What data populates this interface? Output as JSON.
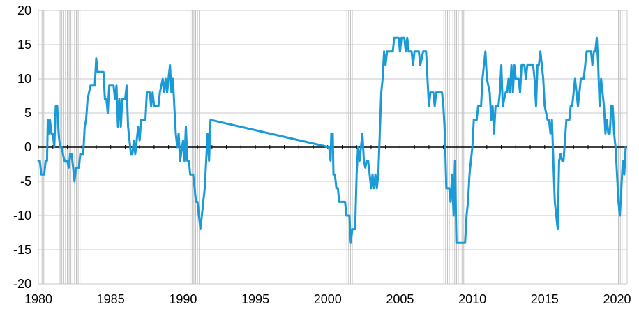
{
  "chart_data": {
    "type": "line",
    "title": "",
    "xlabel": "",
    "ylabel": "",
    "xlim": [
      1980,
      2020.7
    ],
    "ylim": [
      -20,
      20
    ],
    "x_ticks": [
      1980,
      1985,
      1990,
      1995,
      2000,
      2005,
      2010,
      2015,
      2020
    ],
    "y_ticks": [
      20,
      15,
      10,
      5,
      0,
      -5,
      -10,
      -15,
      -20
    ],
    "x_tick_labels": [
      "1980",
      "1985",
      "1990",
      "1995",
      "2000",
      "2005",
      "2010",
      "2015",
      "2020"
    ],
    "y_tick_labels": [
      "20",
      "15",
      "10",
      "5",
      "0",
      "-5",
      "-10",
      "-15",
      "-20"
    ],
    "grid": true,
    "legend": "none",
    "colors": {
      "line": "#1a9ad6",
      "recession": "#b3b3b3",
      "grid": "#c8c8c8",
      "zero_line": "#000000"
    },
    "recession_periods": [
      [
        1980.0,
        1980.5
      ],
      [
        1981.5,
        1982.9
      ],
      [
        1990.5,
        1991.2
      ],
      [
        2001.2,
        2001.9
      ],
      [
        2007.9,
        2009.5
      ],
      [
        2020.1,
        2020.4
      ]
    ],
    "series": [
      {
        "values": [
          [
            1980.0,
            -2
          ],
          [
            1980.1,
            -2
          ],
          [
            1980.2,
            -4
          ],
          [
            1980.4,
            -4
          ],
          [
            1980.5,
            -2
          ],
          [
            1980.6,
            -2
          ],
          [
            1980.65,
            4
          ],
          [
            1980.75,
            2
          ],
          [
            1980.8,
            4
          ],
          [
            1980.9,
            2
          ],
          [
            1981.0,
            2
          ],
          [
            1981.1,
            0
          ],
          [
            1981.2,
            6
          ],
          [
            1981.3,
            6
          ],
          [
            1981.4,
            2
          ],
          [
            1981.5,
            0
          ],
          [
            1981.6,
            0
          ],
          [
            1981.8,
            -2
          ],
          [
            1982.0,
            -2
          ],
          [
            1982.1,
            -3
          ],
          [
            1982.2,
            -1
          ],
          [
            1982.3,
            -1
          ],
          [
            1982.4,
            -3
          ],
          [
            1982.5,
            -5
          ],
          [
            1982.6,
            -3
          ],
          [
            1982.8,
            -3
          ],
          [
            1982.9,
            -1
          ],
          [
            1983.1,
            -1
          ],
          [
            1983.2,
            3
          ],
          [
            1983.3,
            4
          ],
          [
            1983.4,
            7
          ],
          [
            1983.6,
            9
          ],
          [
            1983.9,
            9
          ],
          [
            1984.0,
            13
          ],
          [
            1984.1,
            11
          ],
          [
            1984.5,
            11
          ],
          [
            1984.6,
            7
          ],
          [
            1984.7,
            7
          ],
          [
            1984.8,
            5
          ],
          [
            1984.9,
            9
          ],
          [
            1985.2,
            9
          ],
          [
            1985.3,
            7
          ],
          [
            1985.4,
            9
          ],
          [
            1985.5,
            3
          ],
          [
            1985.6,
            7
          ],
          [
            1985.7,
            3
          ],
          [
            1985.8,
            7
          ],
          [
            1986.0,
            7
          ],
          [
            1986.1,
            9
          ],
          [
            1986.2,
            3
          ],
          [
            1986.4,
            -1
          ],
          [
            1986.5,
            -1
          ],
          [
            1986.6,
            1
          ],
          [
            1986.7,
            -1
          ],
          [
            1986.8,
            1
          ],
          [
            1986.9,
            3
          ],
          [
            1987.0,
            1
          ],
          [
            1987.1,
            4
          ],
          [
            1987.4,
            4
          ],
          [
            1987.5,
            8
          ],
          [
            1987.7,
            8
          ],
          [
            1987.8,
            6
          ],
          [
            1987.9,
            8
          ],
          [
            1988.0,
            6
          ],
          [
            1988.3,
            6
          ],
          [
            1988.4,
            8
          ],
          [
            1988.6,
            10
          ],
          [
            1988.7,
            8
          ],
          [
            1988.8,
            10
          ],
          [
            1988.9,
            8
          ],
          [
            1989.0,
            10
          ],
          [
            1989.1,
            12
          ],
          [
            1989.2,
            8
          ],
          [
            1989.3,
            10
          ],
          [
            1989.4,
            6
          ],
          [
            1989.5,
            2
          ],
          [
            1989.6,
            0
          ],
          [
            1989.7,
            2
          ],
          [
            1989.8,
            -2
          ],
          [
            1990.0,
            1
          ],
          [
            1990.1,
            -2
          ],
          [
            1990.2,
            3
          ],
          [
            1990.3,
            -2
          ],
          [
            1990.4,
            -2
          ],
          [
            1990.5,
            -4
          ],
          [
            1990.7,
            -4
          ],
          [
            1990.8,
            -6
          ],
          [
            1990.9,
            -8
          ],
          [
            1991.0,
            -8
          ],
          [
            1991.1,
            -10
          ],
          [
            1991.2,
            -12
          ],
          [
            1991.4,
            -8
          ],
          [
            1991.5,
            -6
          ],
          [
            1991.7,
            2
          ],
          [
            1991.8,
            -2
          ],
          [
            1991.9,
            4
          ],
          [
            2000.1,
            0
          ],
          [
            2000.2,
            -2
          ],
          [
            2000.25,
            2
          ],
          [
            2000.35,
            2
          ],
          [
            2000.4,
            -4
          ],
          [
            2000.5,
            -4
          ],
          [
            2000.6,
            -6
          ],
          [
            2000.7,
            -6
          ],
          [
            2000.8,
            -8
          ],
          [
            2000.9,
            -8
          ],
          [
            2001.0,
            -8
          ],
          [
            2001.2,
            -8
          ],
          [
            2001.3,
            -10
          ],
          [
            2001.5,
            -10
          ],
          [
            2001.6,
            -14
          ],
          [
            2001.7,
            -12
          ],
          [
            2001.9,
            -12
          ],
          [
            2002.0,
            -4
          ],
          [
            2002.1,
            0
          ],
          [
            2002.2,
            -2
          ],
          [
            2002.3,
            0
          ],
          [
            2002.4,
            2
          ],
          [
            2002.5,
            -2
          ],
          [
            2002.6,
            -3
          ],
          [
            2002.7,
            -2
          ],
          [
            2002.8,
            -2
          ],
          [
            2002.9,
            -4
          ],
          [
            2003.0,
            -6
          ],
          [
            2003.1,
            -4
          ],
          [
            2003.2,
            -6
          ],
          [
            2003.3,
            -4
          ],
          [
            2003.4,
            -6
          ],
          [
            2003.5,
            -4
          ],
          [
            2003.6,
            2
          ],
          [
            2003.7,
            8
          ],
          [
            2003.8,
            10
          ],
          [
            2003.9,
            14
          ],
          [
            2004.0,
            12
          ],
          [
            2004.1,
            14
          ],
          [
            2004.5,
            14
          ],
          [
            2004.6,
            16
          ],
          [
            2004.9,
            16
          ],
          [
            2005.0,
            14
          ],
          [
            2005.1,
            16
          ],
          [
            2005.3,
            16
          ],
          [
            2005.4,
            14
          ],
          [
            2005.5,
            16
          ],
          [
            2005.6,
            14
          ],
          [
            2005.8,
            14
          ],
          [
            2005.9,
            12
          ],
          [
            2006.0,
            14
          ],
          [
            2006.3,
            14
          ],
          [
            2006.4,
            12
          ],
          [
            2006.6,
            14
          ],
          [
            2006.8,
            14
          ],
          [
            2006.9,
            10
          ],
          [
            2007.0,
            6
          ],
          [
            2007.1,
            8
          ],
          [
            2007.3,
            8
          ],
          [
            2007.4,
            6
          ],
          [
            2007.5,
            8
          ],
          [
            2007.9,
            8
          ],
          [
            2008.0,
            6
          ],
          [
            2008.1,
            2
          ],
          [
            2008.2,
            -6
          ],
          [
            2008.4,
            -6
          ],
          [
            2008.5,
            -8
          ],
          [
            2008.6,
            -4
          ],
          [
            2008.7,
            -10
          ],
          [
            2008.8,
            -2
          ],
          [
            2008.9,
            -14
          ],
          [
            2009.5,
            -14
          ],
          [
            2009.6,
            -10
          ],
          [
            2009.7,
            -8
          ],
          [
            2009.8,
            -4
          ],
          [
            2009.9,
            -2
          ],
          [
            2010.0,
            0
          ],
          [
            2010.1,
            4
          ],
          [
            2010.3,
            4
          ],
          [
            2010.4,
            6
          ],
          [
            2010.6,
            6
          ],
          [
            2010.7,
            10
          ],
          [
            2010.9,
            14
          ],
          [
            2011.0,
            10
          ],
          [
            2011.2,
            8
          ],
          [
            2011.3,
            4
          ],
          [
            2011.4,
            6
          ],
          [
            2011.5,
            2
          ],
          [
            2011.6,
            6
          ],
          [
            2011.8,
            6
          ],
          [
            2011.9,
            8
          ],
          [
            2012.0,
            12
          ],
          [
            2012.1,
            6
          ],
          [
            2012.3,
            8
          ],
          [
            2012.4,
            8
          ],
          [
            2012.5,
            10
          ],
          [
            2012.6,
            8
          ],
          [
            2012.7,
            12
          ],
          [
            2012.8,
            8
          ],
          [
            2012.9,
            12
          ],
          [
            2013.0,
            10
          ],
          [
            2013.2,
            10
          ],
          [
            2013.3,
            8
          ],
          [
            2013.4,
            12
          ],
          [
            2013.6,
            12
          ],
          [
            2013.7,
            10
          ],
          [
            2013.8,
            12
          ],
          [
            2014.0,
            12
          ],
          [
            2014.2,
            12
          ],
          [
            2014.3,
            10
          ],
          [
            2014.4,
            6
          ],
          [
            2014.5,
            12
          ],
          [
            2014.6,
            12
          ],
          [
            2014.7,
            14
          ],
          [
            2014.8,
            12
          ],
          [
            2014.9,
            10
          ],
          [
            2015.0,
            6
          ],
          [
            2015.2,
            4
          ],
          [
            2015.3,
            4
          ],
          [
            2015.4,
            2
          ],
          [
            2015.5,
            4
          ],
          [
            2015.6,
            -2
          ],
          [
            2015.7,
            -8
          ],
          [
            2015.8,
            -10
          ],
          [
            2015.9,
            -12
          ],
          [
            2016.0,
            -2
          ],
          [
            2016.1,
            -1
          ],
          [
            2016.2,
            -2
          ],
          [
            2016.3,
            -2
          ],
          [
            2016.5,
            4
          ],
          [
            2016.7,
            4
          ],
          [
            2016.8,
            6
          ],
          [
            2016.9,
            6
          ],
          [
            2017.0,
            8
          ],
          [
            2017.1,
            10
          ],
          [
            2017.2,
            8
          ],
          [
            2017.3,
            6
          ],
          [
            2017.4,
            8
          ],
          [
            2017.5,
            10
          ],
          [
            2017.7,
            10
          ],
          [
            2017.8,
            12
          ],
          [
            2017.9,
            14
          ],
          [
            2018.2,
            14
          ],
          [
            2018.3,
            12
          ],
          [
            2018.4,
            14
          ],
          [
            2018.5,
            14
          ],
          [
            2018.6,
            16
          ],
          [
            2018.7,
            12
          ],
          [
            2018.8,
            6
          ],
          [
            2018.9,
            10
          ],
          [
            2019.0,
            8
          ],
          [
            2019.1,
            6
          ],
          [
            2019.2,
            2
          ],
          [
            2019.3,
            4
          ],
          [
            2019.4,
            2
          ],
          [
            2019.5,
            2
          ],
          [
            2019.6,
            6
          ],
          [
            2019.7,
            6
          ],
          [
            2019.8,
            2
          ],
          [
            2019.9,
            0
          ],
          [
            2020.0,
            -4
          ],
          [
            2020.1,
            -8
          ],
          [
            2020.2,
            -10
          ],
          [
            2020.3,
            -6
          ],
          [
            2020.4,
            -2
          ],
          [
            2020.5,
            -4
          ],
          [
            2020.6,
            0
          ]
        ]
      }
    ]
  }
}
